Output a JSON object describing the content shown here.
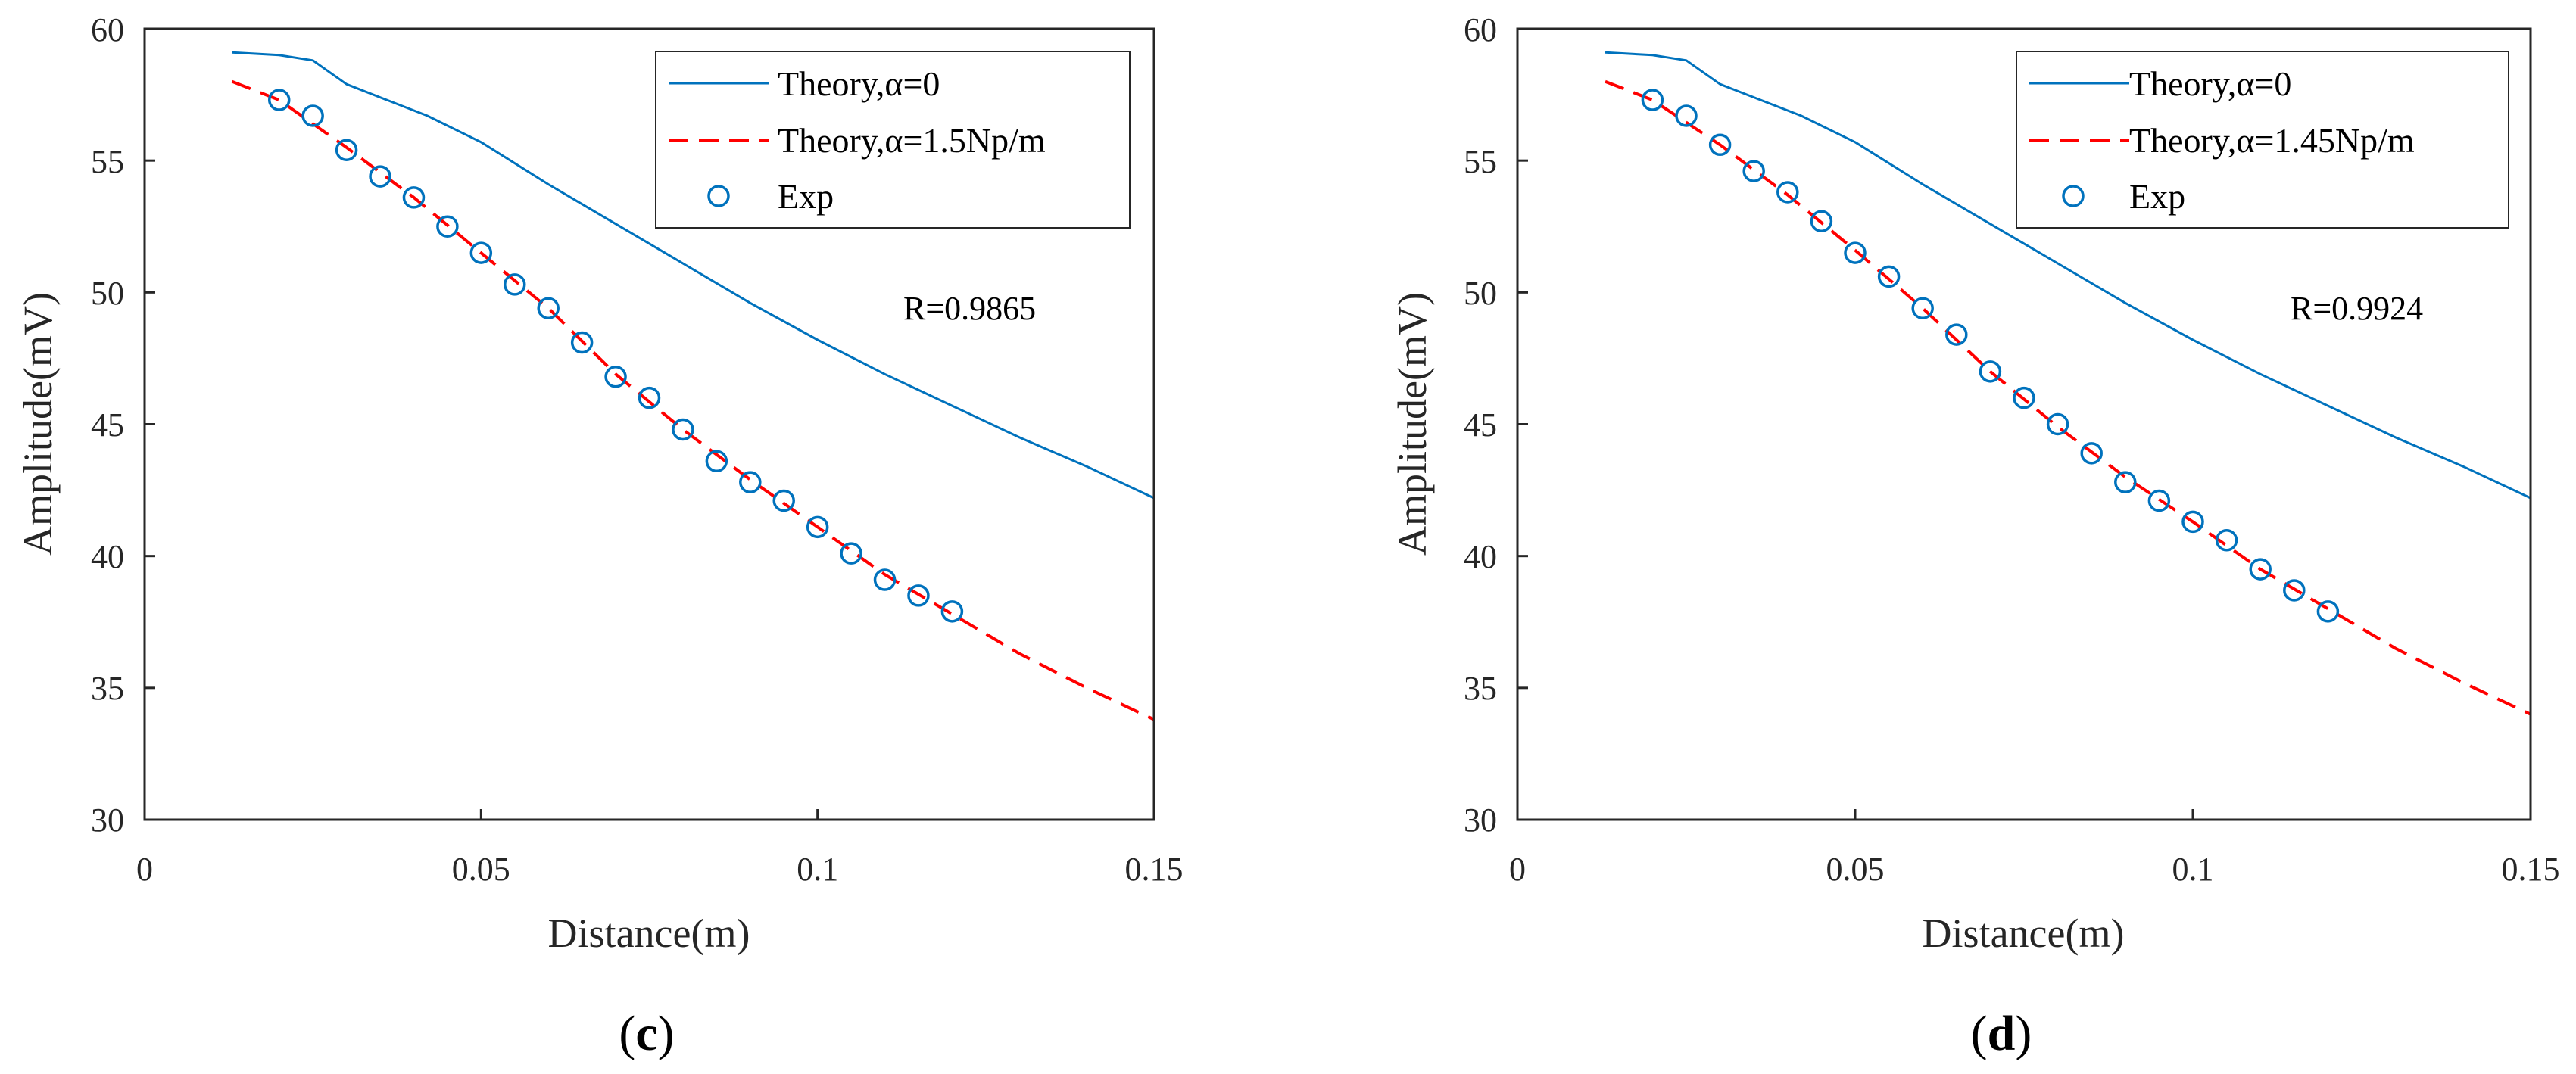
{
  "chart_data": [
    {
      "type": "line",
      "panel_label": {
        "open": "(",
        "letter": "c",
        "close": ")"
      },
      "xlabel": "Distance(m)",
      "ylabel": "Amplitude(mV)",
      "xlim": [
        0,
        0.15
      ],
      "ylim": [
        30,
        60
      ],
      "xticks": [
        0,
        0.05,
        0.1,
        0.15
      ],
      "xtick_labels": [
        "0",
        "0.05",
        "0.1",
        "0.15"
      ],
      "yticks": [
        30,
        35,
        40,
        45,
        50,
        55,
        60
      ],
      "ytick_labels": [
        "30",
        "35",
        "40",
        "45",
        "50",
        "55",
        "60"
      ],
      "grid": false,
      "legend_position": "top-right",
      "annotation": "R=0.9865",
      "series": [
        {
          "name": "Theory,α=0",
          "style": "solid",
          "color": "#0072BD",
          "x": [
            0.013,
            0.02,
            0.025,
            0.03,
            0.035,
            0.042,
            0.05,
            0.06,
            0.07,
            0.08,
            0.09,
            0.1,
            0.11,
            0.12,
            0.13,
            0.14,
            0.15
          ],
          "y": [
            59.1,
            59.0,
            58.8,
            57.9,
            57.4,
            56.7,
            55.7,
            54.1,
            52.6,
            51.1,
            49.6,
            48.2,
            46.9,
            45.7,
            44.5,
            43.4,
            42.2
          ]
        },
        {
          "name": "Theory,α=1.5Np/m",
          "style": "dashed",
          "color": "#FF0000",
          "x": [
            0.013,
            0.02,
            0.03,
            0.04,
            0.05,
            0.06,
            0.07,
            0.08,
            0.09,
            0.1,
            0.11,
            0.12,
            0.13,
            0.14,
            0.15
          ],
          "y": [
            58.0,
            57.3,
            55.5,
            53.6,
            51.5,
            49.4,
            46.9,
            44.8,
            42.9,
            41.1,
            39.3,
            37.8,
            36.3,
            35.0,
            33.8
          ]
        },
        {
          "name": "Exp",
          "style": "markers",
          "color": "#0072BD",
          "x": [
            0.02,
            0.025,
            0.03,
            0.035,
            0.04,
            0.045,
            0.05,
            0.055,
            0.06,
            0.065,
            0.07,
            0.075,
            0.08,
            0.085,
            0.09,
            0.095,
            0.1,
            0.105,
            0.11,
            0.115,
            0.12
          ],
          "y": [
            57.3,
            56.7,
            55.4,
            54.4,
            53.6,
            52.5,
            51.5,
            50.3,
            49.4,
            48.1,
            46.8,
            46.0,
            44.8,
            43.6,
            42.8,
            42.1,
            41.1,
            40.1,
            39.1,
            38.5,
            37.9
          ]
        }
      ]
    },
    {
      "type": "line",
      "panel_label": {
        "open": "(",
        "letter": "d",
        "close": ")"
      },
      "xlabel": "Distance(m)",
      "ylabel": "Amplitude(mV)",
      "xlim": [
        0,
        0.15
      ],
      "ylim": [
        30,
        60
      ],
      "xticks": [
        0,
        0.05,
        0.1,
        0.15
      ],
      "xtick_labels": [
        "0",
        "0.05",
        "0.1",
        "0.15"
      ],
      "yticks": [
        30,
        35,
        40,
        45,
        50,
        55,
        60
      ],
      "ytick_labels": [
        "30",
        "35",
        "40",
        "45",
        "50",
        "55",
        "60"
      ],
      "grid": false,
      "legend_position": "top-right",
      "annotation": "R=0.9924",
      "series": [
        {
          "name": "Theory,α=0",
          "style": "solid",
          "color": "#0072BD",
          "x": [
            0.013,
            0.02,
            0.025,
            0.03,
            0.035,
            0.042,
            0.05,
            0.06,
            0.07,
            0.08,
            0.09,
            0.1,
            0.11,
            0.12,
            0.13,
            0.14,
            0.15
          ],
          "y": [
            59.1,
            59.0,
            58.8,
            57.9,
            57.4,
            56.7,
            55.7,
            54.1,
            52.6,
            51.1,
            49.6,
            48.2,
            46.9,
            45.7,
            44.5,
            43.4,
            42.2
          ]
        },
        {
          "name": "Theory,α=1.45Np/m",
          "style": "dashed",
          "color": "#FF0000",
          "x": [
            0.013,
            0.02,
            0.03,
            0.04,
            0.05,
            0.06,
            0.07,
            0.08,
            0.09,
            0.1,
            0.11,
            0.12,
            0.13,
            0.14,
            0.15
          ],
          "y": [
            58.0,
            57.3,
            55.6,
            53.7,
            51.6,
            49.4,
            47.0,
            44.9,
            43.0,
            41.3,
            39.5,
            38.0,
            36.5,
            35.2,
            34.0
          ]
        },
        {
          "name": "Exp",
          "style": "markers",
          "color": "#0072BD",
          "x": [
            0.02,
            0.025,
            0.03,
            0.035,
            0.04,
            0.045,
            0.05,
            0.055,
            0.06,
            0.065,
            0.07,
            0.075,
            0.08,
            0.085,
            0.09,
            0.095,
            0.1,
            0.105,
            0.11,
            0.115,
            0.12
          ],
          "y": [
            57.3,
            56.7,
            55.6,
            54.6,
            53.8,
            52.7,
            51.5,
            50.6,
            49.4,
            48.4,
            47.0,
            46.0,
            45.0,
            43.9,
            42.8,
            42.1,
            41.3,
            40.6,
            39.5,
            38.7,
            37.9
          ]
        }
      ]
    }
  ]
}
